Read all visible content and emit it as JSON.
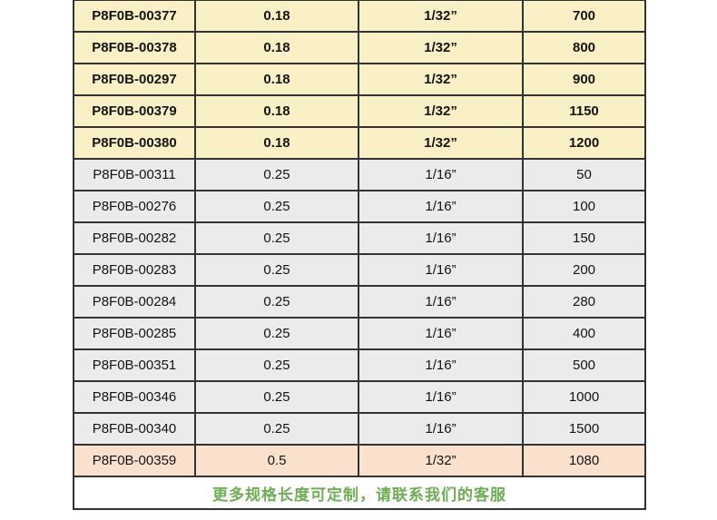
{
  "table": {
    "rows": [
      [
        "P8F0B-00377",
        "0.18",
        "1/32”",
        "700"
      ],
      [
        "P8F0B-00378",
        "0.18",
        "1/32”",
        "800"
      ],
      [
        "P8F0B-00297",
        "0.18",
        "1/32”",
        "900"
      ],
      [
        "P8F0B-00379",
        "0.18",
        "1/32”",
        "1150"
      ],
      [
        "P8F0B-00380",
        "0.18",
        "1/32”",
        "1200"
      ],
      [
        "P8F0B-00311",
        "0.25",
        "1/16”",
        "50"
      ],
      [
        "P8F0B-00276",
        "0.25",
        "1/16”",
        "100"
      ],
      [
        "P8F0B-00282",
        "0.25",
        "1/16”",
        "150"
      ],
      [
        "P8F0B-00283",
        "0.25",
        "1/16”",
        "200"
      ],
      [
        "P8F0B-00284",
        "0.25",
        "1/16”",
        "280"
      ],
      [
        "P8F0B-00285",
        "0.25",
        "1/16”",
        "400"
      ],
      [
        "P8F0B-00351",
        "0.25",
        "1/16”",
        "500"
      ],
      [
        "P8F0B-00346",
        "0.25",
        "1/16”",
        "1000"
      ],
      [
        "P8F0B-00340",
        "0.25",
        "1/16”",
        "1500"
      ],
      [
        "P8F0B-00359",
        "0.5",
        "1/32”",
        "1080"
      ]
    ]
  },
  "footer": {
    "note": "更多规格长度可定制，请联系我们的客服"
  },
  "colors": {
    "group_yellow": "#FAF0C6",
    "group_gray": "#EBEBEB",
    "group_pink": "#FAE1CD",
    "note_green": "#6CB052",
    "border": "#333333"
  }
}
